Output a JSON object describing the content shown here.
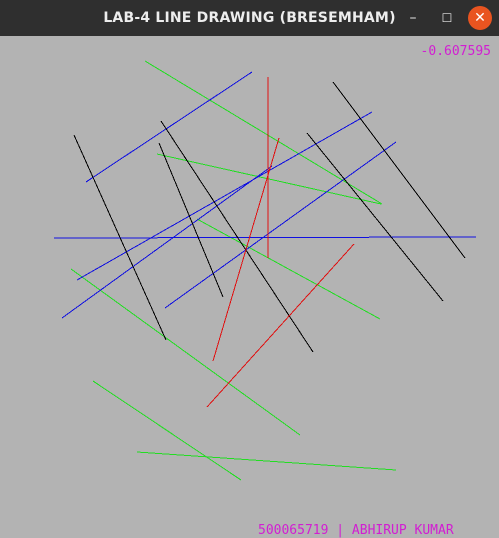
{
  "window": {
    "title": "LAB-4 LINE DRAWING (BRESEMHAM)",
    "minimize_glyph": "–",
    "maximize_glyph": "☐",
    "close_glyph": "✕"
  },
  "canvas": {
    "background": "#b3b3b3",
    "readout": "-0.607595",
    "credit": "500065719 | ABHIRUP KUMAR",
    "text_color": "#d21ed2"
  },
  "colors": {
    "green": "#22dd22",
    "blue": "#1010e0",
    "black": "#000000",
    "red": "#e01010"
  }
}
